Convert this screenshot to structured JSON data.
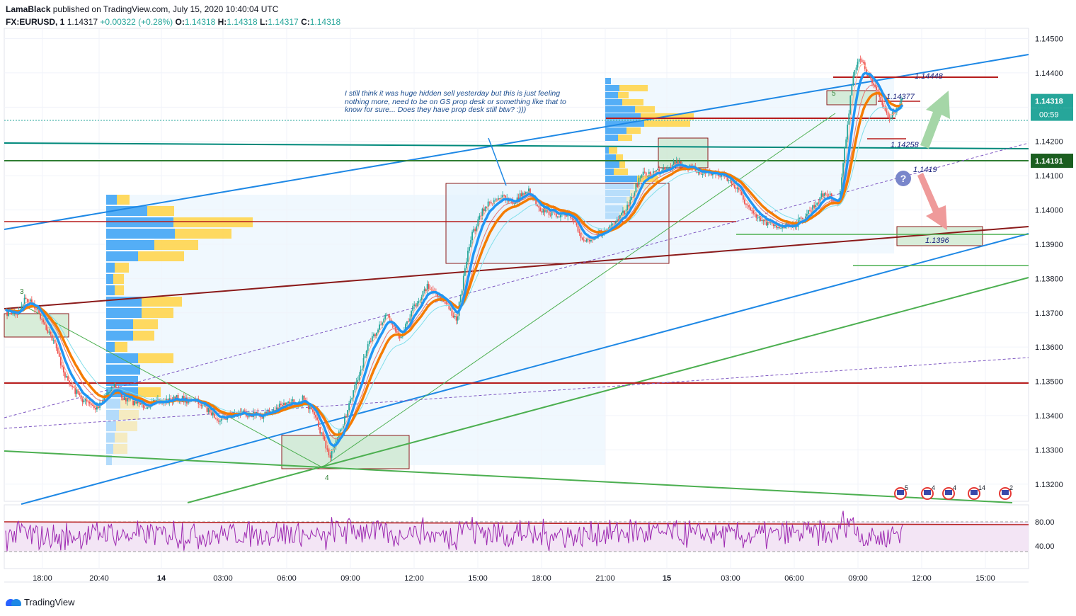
{
  "header": {
    "author": "LamaBlack",
    "published": "published on TradingView.com, July 15, 2020 10:40:04 UTC",
    "symbol": "FX:EURUSD, 1",
    "last": "1.14317",
    "change": "+0.00322 (+0.28%)",
    "o_label": "O:",
    "o": "1.14318",
    "h_label": "H:",
    "h": "1.14318",
    "l_label": "L:",
    "l": "1.14317",
    "c_label": "C:",
    "c": "1.14318"
  },
  "note": "I still think it was huge hidden sell yesterday but this is just feeling nothing more, need to be on  GS prop desk or something like that to know for sure... Does they have prop desk still btw? :)))",
  "logo": "TradingView",
  "colors": {
    "up": "#26a69a",
    "down": "#ef5350",
    "ema_fast": "#2196f3",
    "ema_slow": "#f57c00",
    "support_line": "#b71c1c",
    "trend_blue": "#1e88e5",
    "trend_green": "#4caf50",
    "rsi_line": "#9c27b0",
    "last_price_bg": "#26a69a",
    "level_bg": "#1b5e20"
  },
  "chart_data": {
    "type": "candlestick",
    "symbol": "EURUSD",
    "interval": "1",
    "ylim": [
      1.1315,
      1.1453
    ],
    "y_ticks": [
      "1.14500",
      "1.14400",
      "1.14300",
      "1.14200",
      "1.14100",
      "1.14000",
      "1.13900",
      "1.13800",
      "1.13700",
      "1.13600",
      "1.13500",
      "1.13400",
      "1.13300",
      "1.13200"
    ],
    "x_ticks": [
      "18:00",
      "20:40",
      "14",
      "03:00",
      "06:00",
      "09:00",
      "12:00",
      "15:00",
      "18:00",
      "21:00",
      "15",
      "03:00",
      "06:00",
      "09:00",
      "12:00",
      "15:00"
    ],
    "last_price_label": "1.14318",
    "countdown": "00:59",
    "level_label": "1.14191",
    "price_path": [
      {
        "t": "13 17:00",
        "p": 1.137
      },
      {
        "t": "13 17:20",
        "p": 1.1374
      },
      {
        "t": "13 17:50",
        "p": 1.1372
      },
      {
        "t": "13 18:40",
        "p": 1.1362
      },
      {
        "t": "13 19:20",
        "p": 1.135
      },
      {
        "t": "13 20:00",
        "p": 1.1345
      },
      {
        "t": "13 20:40",
        "p": 1.1342
      },
      {
        "t": "13 21:30",
        "p": 1.1349
      },
      {
        "t": "13 22:00",
        "p": 1.1345
      },
      {
        "t": "13 23:00",
        "p": 1.1343
      },
      {
        "t": "14 00:30",
        "p": 1.1345
      },
      {
        "t": "14 01:30",
        "p": 1.1344
      },
      {
        "t": "14 02:30",
        "p": 1.1339
      },
      {
        "t": "14 03:30",
        "p": 1.1341
      },
      {
        "t": "14 04:30",
        "p": 1.134
      },
      {
        "t": "14 05:30",
        "p": 1.1343
      },
      {
        "t": "14 06:30",
        "p": 1.1345
      },
      {
        "t": "14 07:10",
        "p": 1.1337
      },
      {
        "t": "14 07:40",
        "p": 1.1328
      },
      {
        "t": "14 08:10",
        "p": 1.1335
      },
      {
        "t": "14 08:40",
        "p": 1.1344
      },
      {
        "t": "14 09:30",
        "p": 1.136
      },
      {
        "t": "14 10:20",
        "p": 1.137
      },
      {
        "t": "14 11:00",
        "p": 1.1363
      },
      {
        "t": "14 11:40",
        "p": 1.1372
      },
      {
        "t": "14 12:20",
        "p": 1.1378
      },
      {
        "t": "14 13:00",
        "p": 1.1374
      },
      {
        "t": "14 13:40",
        "p": 1.1368
      },
      {
        "t": "14 14:20",
        "p": 1.1392
      },
      {
        "t": "14 15:00",
        "p": 1.1401
      },
      {
        "t": "14 15:40",
        "p": 1.1404
      },
      {
        "t": "14 16:20",
        "p": 1.1402
      },
      {
        "t": "14 17:00",
        "p": 1.1406
      },
      {
        "t": "14 17:40",
        "p": 1.14
      },
      {
        "t": "14 18:20",
        "p": 1.1399
      },
      {
        "t": "14 19:00",
        "p": 1.1398
      },
      {
        "t": "14 19:40",
        "p": 1.1391
      },
      {
        "t": "14 20:20",
        "p": 1.1393
      },
      {
        "t": "14 21:00",
        "p": 1.1395
      },
      {
        "t": "14 21:40",
        "p": 1.14
      },
      {
        "t": "14 22:20",
        "p": 1.141
      },
      {
        "t": "14 23:00",
        "p": 1.1411
      },
      {
        "t": "15 00:00",
        "p": 1.1414
      },
      {
        "t": "15 00:40",
        "p": 1.1412
      },
      {
        "t": "15 01:20",
        "p": 1.1411
      },
      {
        "t": "15 02:20",
        "p": 1.141
      },
      {
        "t": "15 03:00",
        "p": 1.1405
      },
      {
        "t": "15 03:40",
        "p": 1.1398
      },
      {
        "t": "15 04:40",
        "p": 1.1395
      },
      {
        "t": "15 05:40",
        "p": 1.1396
      },
      {
        "t": "15 06:20",
        "p": 1.14
      },
      {
        "t": "15 07:00",
        "p": 1.1405
      },
      {
        "t": "15 07:40",
        "p": 1.1402
      },
      {
        "t": "15 08:20",
        "p": 1.144
      },
      {
        "t": "15 08:40",
        "p": 1.1444
      },
      {
        "t": "15 09:20",
        "p": 1.1436
      },
      {
        "t": "15 10:00",
        "p": 1.1427
      },
      {
        "t": "15 10:40",
        "p": 1.1432
      }
    ],
    "rsi": {
      "levels": [
        "80.00",
        "40.00"
      ],
      "upper": 80,
      "lower": 40
    },
    "price_labels": [
      "1.14448",
      "1.14377",
      "1.14258",
      "1.1419",
      "1.1396"
    ],
    "wave_labels": [
      "3",
      "4",
      "5"
    ],
    "event_counts": [
      "5",
      "4",
      "4",
      "14",
      "2"
    ]
  }
}
